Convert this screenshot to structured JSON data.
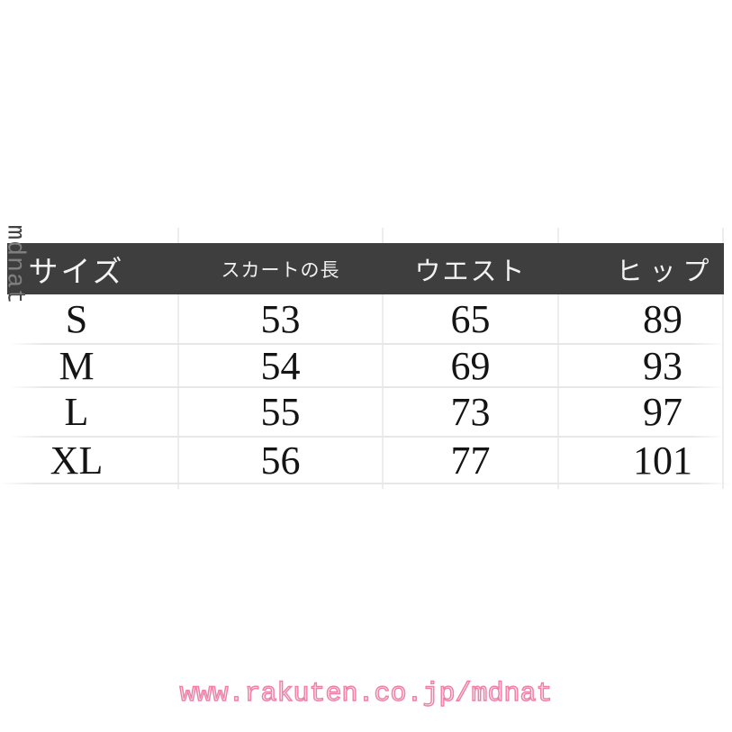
{
  "page": {
    "background_color": "#ffffff",
    "accent_pink": "#ee7fa6",
    "header_bg": "#3e3e3e",
    "header_text_color": "#f2f2f2",
    "grid_line_color": "#e7e7e7"
  },
  "watermark": {
    "text": "mdnat"
  },
  "footer": {
    "url": "www.rakuten.co.jp/mdnat"
  },
  "size_chart": {
    "columns": [
      "サイズ",
      "スカートの長",
      "ウエスト",
      "ヒップ"
    ],
    "rows": [
      [
        "S",
        "53",
        "65",
        "89"
      ],
      [
        "M",
        "54",
        "69",
        "93"
      ],
      [
        "L",
        "55",
        "73",
        "97"
      ],
      [
        "XL",
        "56",
        "77",
        "101"
      ]
    ]
  },
  "chart_data": {
    "type": "table",
    "title": "",
    "columns": [
      "サイズ",
      "スカートの長",
      "ウエスト",
      "ヒップ"
    ],
    "rows": [
      {
        "size": "S",
        "skirt_length": 53,
        "waist": 65,
        "hip": 89
      },
      {
        "size": "M",
        "skirt_length": 54,
        "waist": 69,
        "hip": 93
      },
      {
        "size": "L",
        "skirt_length": 55,
        "waist": 73,
        "hip": 97
      },
      {
        "size": "XL",
        "skirt_length": 56,
        "waist": 77,
        "hip": 101
      }
    ]
  }
}
